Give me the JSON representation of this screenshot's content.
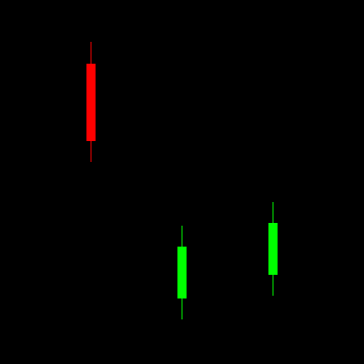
{
  "colors": {
    "background": "#000000",
    "bearish": "#ff0000",
    "bullish": "#00ff00"
  },
  "chart_data": {
    "type": "candlestick",
    "grid": false,
    "legend": "none",
    "ylim": [
      0,
      400
    ],
    "x": [
      1,
      2,
      3
    ],
    "xlim": [
      0,
      4
    ],
    "candles": [
      {
        "x": 1,
        "open": 330,
        "high": 354,
        "low": 222,
        "close": 245,
        "direction": "bearish"
      },
      {
        "x": 2,
        "open": 72,
        "high": 152,
        "low": 49,
        "close": 129,
        "direction": "bullish"
      },
      {
        "x": 3,
        "open": 98,
        "high": 178,
        "low": 75,
        "close": 155,
        "direction": "bullish"
      }
    ]
  }
}
